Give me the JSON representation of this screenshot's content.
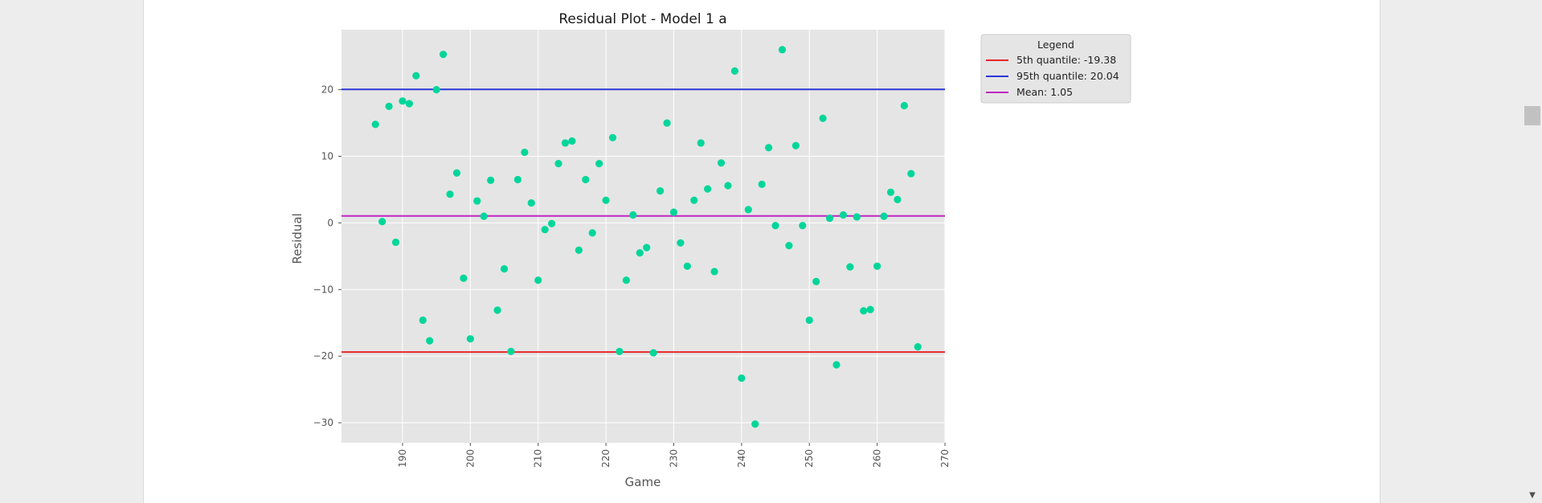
{
  "chart_data": {
    "type": "scatter",
    "title": "Residual Plot - Model 1 a",
    "xlabel": "Game",
    "ylabel": "Residual",
    "xlim": [
      181,
      270
    ],
    "ylim": [
      -33,
      29
    ],
    "xticks": [
      190,
      200,
      210,
      220,
      230,
      240,
      250,
      260,
      270
    ],
    "yticks": [
      -30,
      -20,
      -10,
      0,
      10,
      20
    ],
    "ytick_labels": [
      "−30",
      "−20",
      "−10",
      "0",
      "10",
      "20"
    ],
    "grid": true,
    "point_color": "#00d69a",
    "points": [
      [
        186,
        14.8
      ],
      [
        187,
        0.2
      ],
      [
        188,
        17.5
      ],
      [
        189,
        -2.9
      ],
      [
        190,
        18.3
      ],
      [
        191,
        17.9
      ],
      [
        192,
        22.1
      ],
      [
        193,
        -14.6
      ],
      [
        194,
        -17.7
      ],
      [
        195,
        20.0
      ],
      [
        196,
        25.3
      ],
      [
        197,
        4.3
      ],
      [
        198,
        7.5
      ],
      [
        199,
        -8.3
      ],
      [
        200,
        -17.4
      ],
      [
        201,
        3.3
      ],
      [
        202,
        1.0
      ],
      [
        203,
        6.4
      ],
      [
        204,
        -13.1
      ],
      [
        205,
        -6.9
      ],
      [
        206,
        -19.3
      ],
      [
        207,
        6.5
      ],
      [
        208,
        10.6
      ],
      [
        209,
        3.0
      ],
      [
        210,
        -8.6
      ],
      [
        211,
        -1.0
      ],
      [
        212,
        -0.1
      ],
      [
        213,
        8.9
      ],
      [
        214,
        12.0
      ],
      [
        215,
        12.3
      ],
      [
        216,
        -4.1
      ],
      [
        217,
        6.5
      ],
      [
        218,
        -1.5
      ],
      [
        219,
        8.9
      ],
      [
        220,
        3.4
      ],
      [
        221,
        12.8
      ],
      [
        222,
        -19.3
      ],
      [
        223,
        -8.6
      ],
      [
        224,
        1.2
      ],
      [
        225,
        -4.5
      ],
      [
        226,
        -3.7
      ],
      [
        227,
        -19.5
      ],
      [
        228,
        4.8
      ],
      [
        229,
        15.0
      ],
      [
        230,
        1.6
      ],
      [
        231,
        -3.0
      ],
      [
        232,
        -6.5
      ],
      [
        233,
        3.4
      ],
      [
        234,
        12.0
      ],
      [
        235,
        5.1
      ],
      [
        236,
        -7.3
      ],
      [
        237,
        9.0
      ],
      [
        238,
        5.6
      ],
      [
        239,
        22.8
      ],
      [
        240,
        -23.3
      ],
      [
        241,
        2.0
      ],
      [
        242,
        -30.2
      ],
      [
        243,
        5.8
      ],
      [
        244,
        11.3
      ],
      [
        245,
        -0.4
      ],
      [
        246,
        26.0
      ],
      [
        247,
        -3.4
      ],
      [
        248,
        11.6
      ],
      [
        249,
        -0.4
      ],
      [
        250,
        -14.6
      ],
      [
        251,
        -8.8
      ],
      [
        252,
        15.7
      ],
      [
        253,
        0.7
      ],
      [
        254,
        -21.3
      ],
      [
        255,
        1.2
      ],
      [
        256,
        -6.6
      ],
      [
        257,
        0.9
      ],
      [
        258,
        -13.2
      ],
      [
        259,
        -13.0
      ],
      [
        260,
        -6.5
      ],
      [
        261,
        1.0
      ],
      [
        262,
        4.6
      ],
      [
        263,
        3.5
      ],
      [
        264,
        17.6
      ],
      [
        265,
        7.4
      ],
      [
        266,
        -18.6
      ]
    ],
    "hlines": [
      {
        "name": "5th quantile: -19.38",
        "y": -19.38,
        "color": "#e8262a"
      },
      {
        "name": "95th quantile: 20.04",
        "y": 20.04,
        "color": "#2a36d6"
      },
      {
        "name": "Mean: 1.05",
        "y": 1.05,
        "color": "#c026c4"
      }
    ],
    "legend": {
      "title": "Legend",
      "placement": "outside-right-top"
    }
  }
}
